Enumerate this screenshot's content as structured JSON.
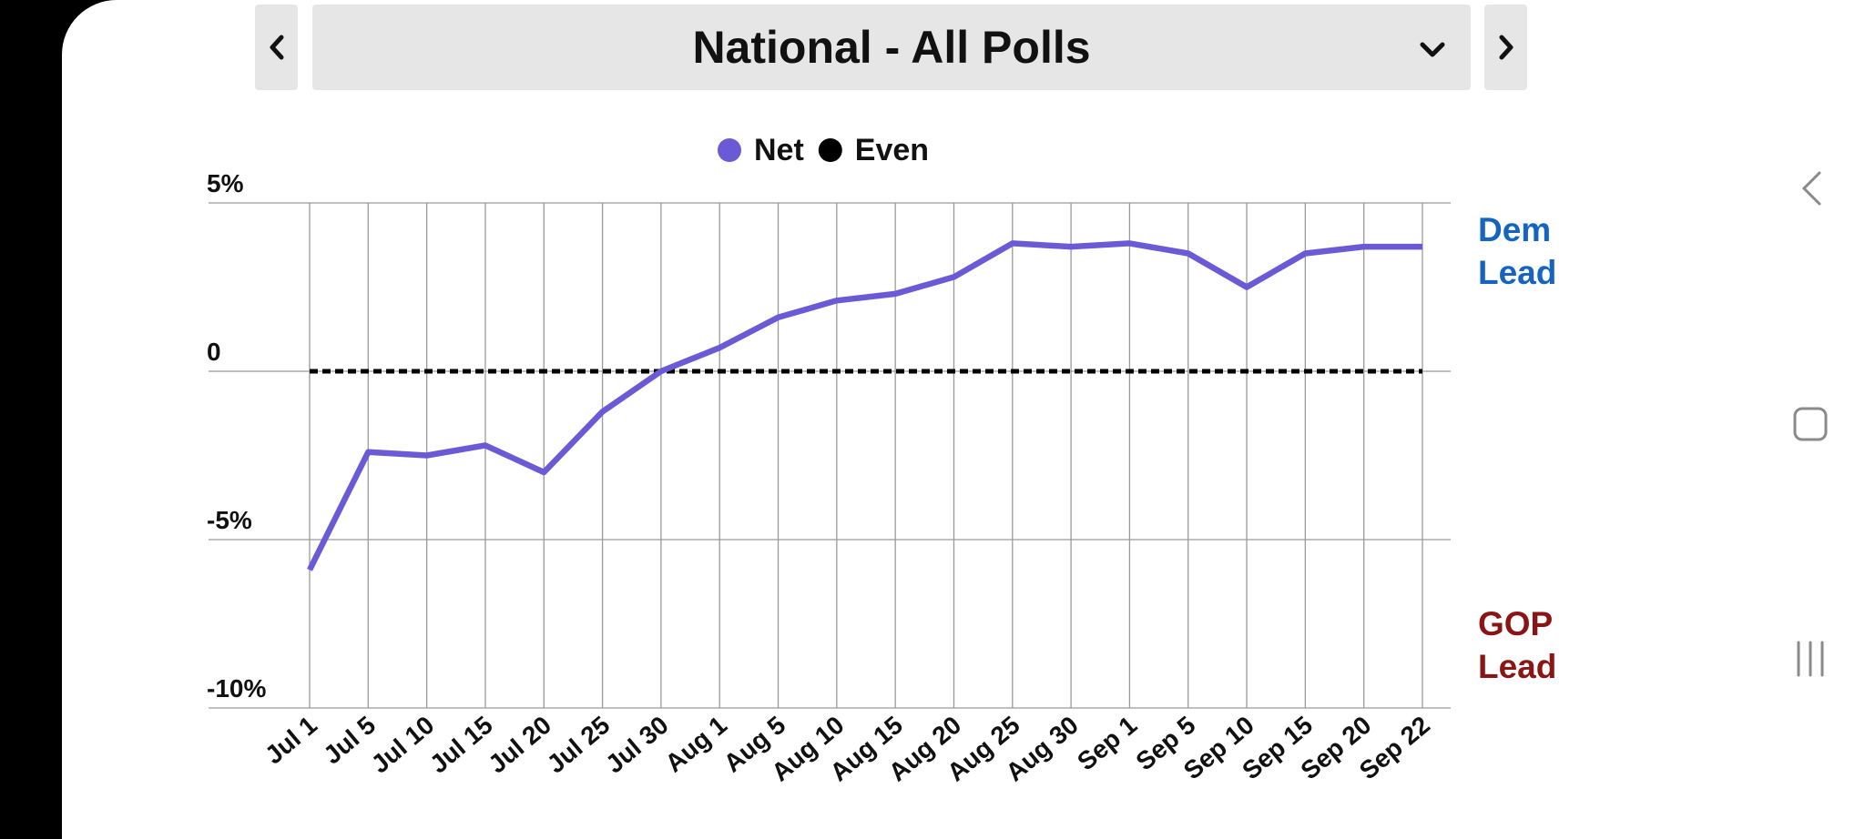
{
  "header": {
    "title": "National - All Polls"
  },
  "chart_data": {
    "type": "line",
    "categories": [
      "Jul 1",
      "Jul 5",
      "Jul 10",
      "Jul 15",
      "Jul 20",
      "Jul 25",
      "Jul 30",
      "Aug 1",
      "Aug 5",
      "Aug 10",
      "Aug 15",
      "Aug 20",
      "Aug 25",
      "Aug 30",
      "Sep 1",
      "Sep 5",
      "Sep 10",
      "Sep 15",
      "Sep 20",
      "Sep 22"
    ],
    "series": [
      {
        "name": "Net",
        "color": "#6a5ad6",
        "values": [
          -5.9,
          -2.4,
          -2.5,
          -2.2,
          -3.0,
          -1.2,
          0.0,
          0.7,
          1.6,
          2.1,
          2.3,
          2.8,
          3.8,
          3.7,
          3.8,
          3.5,
          2.5,
          3.5,
          3.7,
          3.7
        ]
      },
      {
        "name": "Even",
        "color": "#000000",
        "dashed": true,
        "values": [
          0,
          0,
          0,
          0,
          0,
          0,
          0,
          0,
          0,
          0,
          0,
          0,
          0,
          0,
          0,
          0,
          0,
          0,
          0,
          0
        ]
      }
    ],
    "ylim": [
      -10,
      5
    ],
    "yticks": [
      {
        "value": 5,
        "label": "5%"
      },
      0,
      {
        "value": -5,
        "label": "-5%"
      },
      {
        "value": -10,
        "label": "-10%"
      }
    ],
    "grid": true,
    "legend": "top",
    "annotations": [
      {
        "text": "Dem Lead",
        "color": "#1565c0"
      },
      {
        "text": "GOP Lead",
        "color": "#8b1414"
      }
    ]
  }
}
